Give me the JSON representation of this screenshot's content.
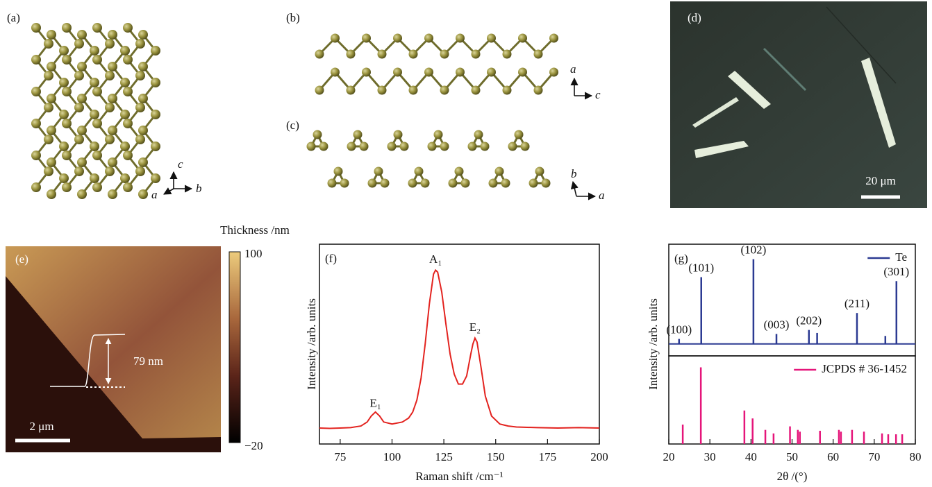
{
  "panels": {
    "a": {
      "label": "(a)",
      "axes": [
        "c",
        "a",
        "b"
      ]
    },
    "b": {
      "label": "(b)",
      "axes": [
        "a",
        "c"
      ]
    },
    "c": {
      "label": "(c)",
      "axes": [
        "b",
        "a"
      ]
    },
    "d": {
      "label": "(d)",
      "scale_bar": "20 μm"
    },
    "e": {
      "label": "(e)",
      "step": "79 nm",
      "scale_bar": "2 μm",
      "colorbar": {
        "title": "Thickness /nm",
        "lim": [
          -20,
          100
        ],
        "ticks": [
          100,
          {
            "value": -20,
            "label": "−20"
          }
        ]
      }
    }
  },
  "chart_data": [
    {
      "type": "line",
      "panel_label": "(f)",
      "xlabel": "Raman shift /cm⁻¹",
      "ylabel": "Intensity /arb. units",
      "xlim": [
        65,
        200
      ],
      "ylim": [
        0,
        1
      ],
      "xticks": [
        75,
        100,
        125,
        150,
        175,
        200
      ],
      "color": "#e3231f",
      "x": [
        65,
        70,
        75,
        80,
        85,
        88,
        90,
        92,
        94,
        96,
        100,
        105,
        108,
        110,
        112,
        114,
        116,
        118,
        120,
        121,
        122,
        124,
        126,
        128,
        130,
        132,
        134,
        136,
        138,
        139,
        140,
        141,
        143,
        145,
        148,
        152,
        156,
        160,
        170,
        180,
        190,
        200
      ],
      "values": [
        0.08,
        0.078,
        0.08,
        0.082,
        0.09,
        0.11,
        0.14,
        0.16,
        0.14,
        0.11,
        0.1,
        0.11,
        0.13,
        0.16,
        0.22,
        0.33,
        0.5,
        0.7,
        0.85,
        0.87,
        0.86,
        0.76,
        0.6,
        0.45,
        0.35,
        0.3,
        0.3,
        0.34,
        0.45,
        0.5,
        0.53,
        0.51,
        0.38,
        0.24,
        0.14,
        0.1,
        0.09,
        0.085,
        0.082,
        0.08,
        0.082,
        0.08
      ],
      "annotations": [
        {
          "text": "E₁",
          "x": 92,
          "y": 0.2
        },
        {
          "text": "A₁",
          "x": 121,
          "y": 0.92
        },
        {
          "text": "E₂",
          "x": 140,
          "y": 0.58
        }
      ]
    },
    {
      "type": "stem",
      "panel_label": "(g)",
      "ylabel": "Intensity /arb. units",
      "xlim": [
        20,
        80
      ],
      "ylim": [
        -0.12,
        1
      ],
      "legend": "upper right",
      "series": [
        {
          "name": "Te",
          "color": "#2b3a92",
          "x": [
            22.5,
            27.9,
            40.6,
            46.2,
            54.1,
            56.1,
            65.8,
            72.7,
            75.4
          ],
          "values": [
            0.05,
            0.67,
            0.85,
            0.1,
            0.14,
            0.11,
            0.31,
            0.08,
            0.63
          ],
          "labels": [
            "(100)",
            "(101)",
            "(102)",
            "(003)",
            "(202)",
            null,
            "(211)",
            null,
            "(301)"
          ]
        }
      ]
    },
    {
      "type": "stem",
      "xlabel": "2θ /(°)",
      "xlim": [
        20,
        80
      ],
      "ylim": [
        0,
        1
      ],
      "xticks": [
        20,
        30,
        40,
        50,
        60,
        70,
        80
      ],
      "legend": "upper right",
      "series": [
        {
          "name": "JCPDS # 36-1452",
          "color": "#e5157a",
          "x": [
            23.4,
            27.8,
            38.4,
            40.4,
            43.5,
            45.5,
            49.5,
            51.4,
            51.9,
            56.8,
            61.4,
            61.9,
            64.6,
            67.5,
            71.9,
            73.4,
            75.3,
            76.8
          ],
          "values": [
            0.22,
            0.87,
            0.38,
            0.29,
            0.16,
            0.12,
            0.2,
            0.16,
            0.14,
            0.15,
            0.16,
            0.14,
            0.16,
            0.14,
            0.12,
            0.11,
            0.11,
            0.11
          ]
        }
      ]
    }
  ]
}
